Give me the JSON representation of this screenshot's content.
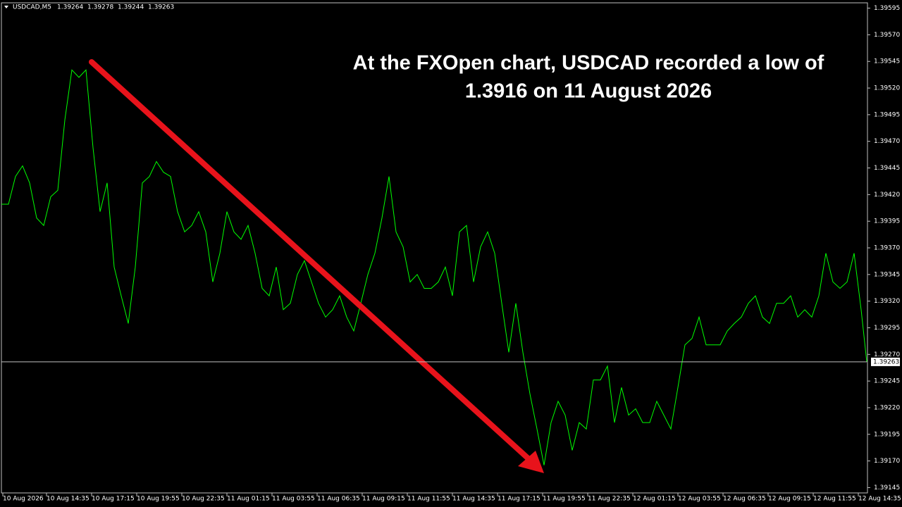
{
  "chart_data": {
    "type": "line",
    "symbol": "USDCAD,M5",
    "ohlc": [
      1.39264,
      1.39278,
      1.39244,
      1.39263
    ],
    "annotation": [
      "At the FXOpen chart, USDCAD recorded a low of",
      "1.3916 on 11 August 2026"
    ],
    "last_price": 1.39263,
    "color": "#00ff00",
    "x": [
      0,
      5,
      10,
      15,
      20,
      25,
      30,
      35,
      40,
      45,
      50,
      55,
      60,
      65,
      70,
      75,
      80,
      85,
      90,
      95,
      100,
      105,
      110,
      115,
      120,
      125,
      130,
      135,
      140,
      145,
      150,
      155,
      160,
      165,
      170,
      175,
      180,
      185,
      190,
      195,
      200,
      205,
      210,
      215,
      220,
      225,
      230,
      235,
      240,
      245,
      250,
      255,
      260,
      265,
      270,
      275,
      280,
      285,
      290,
      295,
      300,
      305,
      310,
      315,
      320,
      325,
      330,
      335,
      340,
      345,
      350,
      355,
      360,
      365,
      370,
      375,
      380,
      385,
      390,
      395,
      400,
      405,
      410,
      415,
      420,
      425,
      430,
      435,
      440,
      445,
      450,
      455,
      460,
      465,
      470,
      475,
      480,
      485,
      490,
      495,
      500,
      505,
      510,
      515,
      520,
      525,
      530,
      535,
      540,
      545,
      550,
      555,
      560,
      565,
      570,
      575,
      580,
      585,
      590,
      595,
      600,
      605,
      610,
      614
    ],
    "values": [
      1.39411,
      1.39411,
      1.39437,
      1.39447,
      1.39431,
      1.39398,
      1.39391,
      1.39418,
      1.39424,
      1.3949,
      1.39537,
      1.3953,
      1.39537,
      1.39464,
      1.39404,
      1.39431,
      1.39352,
      1.39325,
      1.39299,
      1.39352,
      1.39431,
      1.39437,
      1.39451,
      1.39441,
      1.39437,
      1.39404,
      1.39385,
      1.39391,
      1.39404,
      1.39385,
      1.39338,
      1.39365,
      1.39404,
      1.39385,
      1.39378,
      1.39391,
      1.39365,
      1.39332,
      1.39325,
      1.39352,
      1.39312,
      1.39318,
      1.39345,
      1.39358,
      1.39338,
      1.39318,
      1.39305,
      1.39312,
      1.39325,
      1.39305,
      1.39292,
      1.39318,
      1.39345,
      1.39365,
      1.39398,
      1.39437,
      1.39385,
      1.39371,
      1.39338,
      1.39345,
      1.39332,
      1.39332,
      1.39338,
      1.39352,
      1.39325,
      1.39385,
      1.39391,
      1.39338,
      1.39371,
      1.39385,
      1.39365,
      1.39318,
      1.39272,
      1.39318,
      1.39272,
      1.39233,
      1.392,
      1.39166,
      1.39206,
      1.39226,
      1.39213,
      1.3918,
      1.39206,
      1.392,
      1.39246,
      1.39246,
      1.39259,
      1.39206,
      1.39239,
      1.39213,
      1.39219,
      1.39206,
      1.39206,
      1.39226,
      1.39213,
      1.392,
      1.39239,
      1.39279,
      1.39285,
      1.39305,
      1.39279,
      1.39279,
      1.39279,
      1.39292,
      1.39299,
      1.39305,
      1.39318,
      1.39325,
      1.39305,
      1.39299,
      1.39318,
      1.39318,
      1.39325,
      1.39305,
      1.39312,
      1.39305,
      1.39325,
      1.39365,
      1.39338,
      1.39332,
      1.39338,
      1.39365,
      1.39312,
      1.39263
    ],
    "xlim": [
      0,
      614
    ],
    "xticks": [
      {
        "value": 1,
        "label": "10 Aug 2026"
      },
      {
        "value": 32,
        "label": "10 Aug 14:35"
      },
      {
        "value": 64,
        "label": "10 Aug 17:15"
      },
      {
        "value": 96,
        "label": "10 Aug 19:55"
      },
      {
        "value": 128,
        "label": "10 Aug 22:35"
      },
      {
        "value": 160,
        "label": "11 Aug 01:15"
      },
      {
        "value": 192,
        "label": "11 Aug 03:55"
      },
      {
        "value": 224,
        "label": "11 Aug 06:35"
      },
      {
        "value": 256,
        "label": "11 Aug 09:15"
      },
      {
        "value": 288,
        "label": "11 Aug 11:55"
      },
      {
        "value": 320,
        "label": "11 Aug 14:35"
      },
      {
        "value": 352,
        "label": "11 Aug 17:15"
      },
      {
        "value": 384,
        "label": "11 Aug 19:55"
      },
      {
        "value": 416,
        "label": "11 Aug 22:35"
      },
      {
        "value": 448,
        "label": "12 Aug 01:15"
      },
      {
        "value": 480,
        "label": "12 Aug 03:55"
      },
      {
        "value": 512,
        "label": "12 Aug 06:35"
      },
      {
        "value": 544,
        "label": "12 Aug 09:15"
      },
      {
        "value": 576,
        "label": "12 Aug 11:55"
      },
      {
        "value": 608,
        "label": "12 Aug 14:35"
      }
    ],
    "ylim": [
      1.3914,
      1.396
    ],
    "yticks": [
      1.39595,
      {
        "value": 1.3957,
        "label": "1.39570"
      },
      1.39545,
      {
        "value": 1.3952,
        "label": "1.39520"
      },
      1.39495,
      {
        "value": 1.3947,
        "label": "1.39470"
      },
      1.39445,
      {
        "value": 1.3942,
        "label": "1.39420"
      },
      1.39395,
      {
        "value": 1.3937,
        "label": "1.39370"
      },
      1.39345,
      {
        "value": 1.3932,
        "label": "1.39320"
      },
      1.39295,
      {
        "value": 1.3927,
        "label": "1.39270"
      },
      1.39245,
      {
        "value": 1.3922,
        "label": "1.39220"
      },
      1.39195,
      {
        "value": 1.3917,
        "label": "1.39170"
      },
      1.39145
    ]
  }
}
